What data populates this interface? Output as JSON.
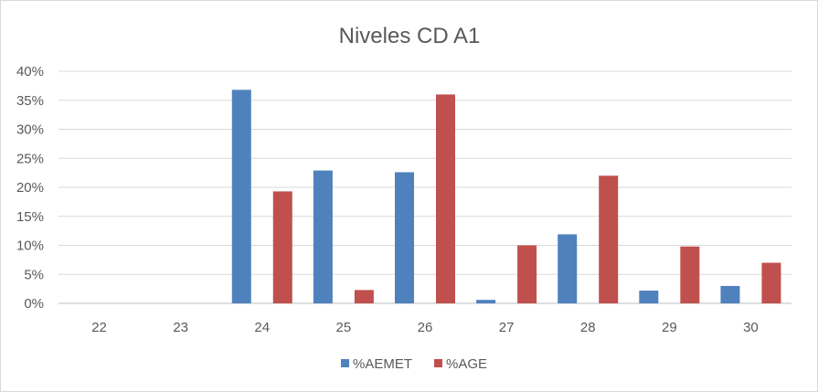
{
  "chart_data": {
    "type": "bar",
    "title": "Niveles CD A1",
    "categories": [
      "22",
      "23",
      "24",
      "25",
      "26",
      "27",
      "28",
      "29",
      "30"
    ],
    "series": [
      {
        "name": "%AEMET",
        "color": "#4f81bd",
        "values": [
          0,
          0,
          36.8,
          22.9,
          22.6,
          0.6,
          11.9,
          2.2,
          3.0
        ]
      },
      {
        "name": "%AGE",
        "color": "#c0504d",
        "values": [
          0,
          0,
          19.3,
          2.3,
          36.0,
          10.0,
          22.0,
          9.8,
          7.0
        ]
      }
    ],
    "y_ticks": [
      "0%",
      "5%",
      "10%",
      "15%",
      "20%",
      "25%",
      "30%",
      "35%",
      "40%"
    ],
    "ylim": [
      0,
      40
    ],
    "grid": true,
    "legend_position": "bottom"
  }
}
